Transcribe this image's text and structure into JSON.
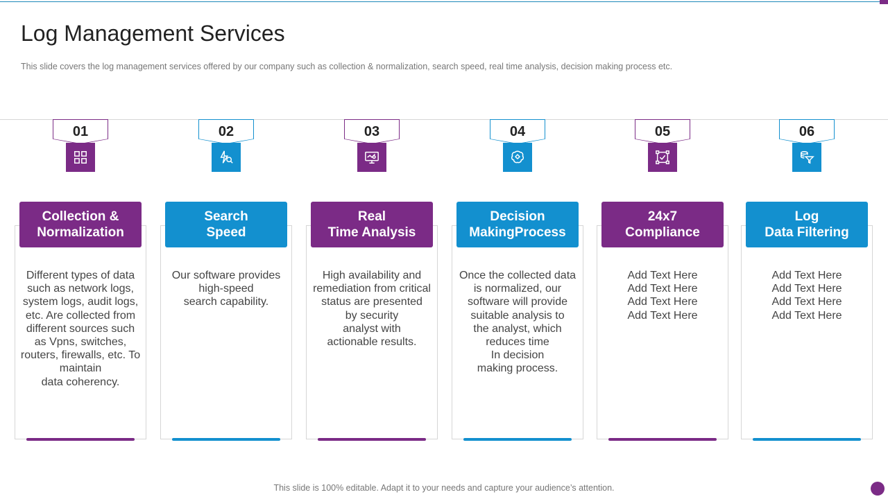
{
  "slide": {
    "title": "Log Management Services",
    "subtitle": "This slide covers the log management  services offered  by our company such as collection & normalization,  search speed, real time analysis, decision  making process etc.",
    "footer": "This slide is 100% editable. Adapt it to your needs and capture your audience’s attention."
  },
  "colors": {
    "purple": "#7b2b86",
    "blue": "#1390cf"
  },
  "cards": [
    {
      "number": "01",
      "heading": "Collection &\nNormalization",
      "body": "Different types of data\nsuch as network logs,\nsystem logs, audit logs,\netc. Are collected from\ndifferent sources such\nas Vpns, switches,\nrouters, firewalls, etc. To\nmaintain\ndata coherency.",
      "icon": "grid-icon",
      "color": "purple"
    },
    {
      "number": "02",
      "heading": "Search\nSpeed",
      "body": "Our software provides\nhigh-speed\nsearch capability.",
      "icon": "lightning-search-icon",
      "color": "blue"
    },
    {
      "number": "03",
      "heading": "Real\nTime Analysis",
      "body": "High availability and\nremediation from critical\nstatus are presented\nby security\nanalyst with\nactionable results.",
      "icon": "monitor-analytics-icon",
      "color": "purple"
    },
    {
      "number": "04",
      "heading": "Decision\nMakingProcess",
      "body": "Once the collected data\nis normalized, our\nsoftware will provide\nsuitable analysis to\nthe analyst, which\nreduces time\nIn decision\nmaking process.",
      "icon": "brain-gear-icon",
      "color": "blue"
    },
    {
      "number": "05",
      "heading": "24x7\nCompliance",
      "body": "Add Text Here\nAdd Text Here\nAdd Text Here\nAdd Text Here",
      "icon": "checkbox-frame-icon",
      "color": "purple"
    },
    {
      "number": "06",
      "heading": "Log\nData Filtering",
      "body": "Add Text Here\nAdd Text Here\nAdd Text Here\nAdd Text Here",
      "icon": "database-filter-icon",
      "color": "blue"
    }
  ]
}
